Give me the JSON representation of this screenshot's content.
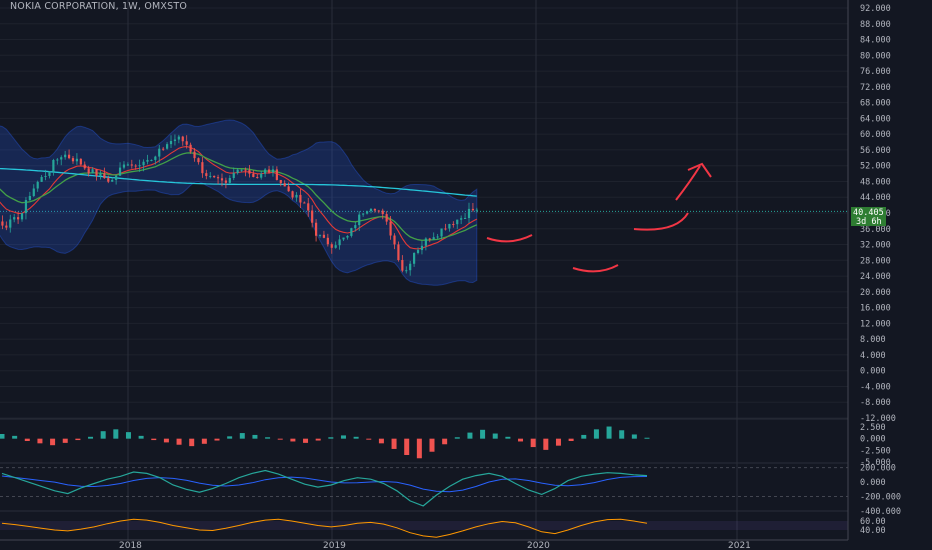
{
  "title": "NOKIA CORPORATION, 1W, OMXSTO",
  "price_tag": {
    "price": "40.405",
    "countdown": "3d 6h",
    "color": "#2e7d32"
  },
  "chart_data": {
    "type": "candlestick",
    "symbol": "NOKIA CORPORATION",
    "interval": "1W",
    "exchange": "OMXSTO",
    "main_pane": {
      "ylim": [
        -12,
        92
      ],
      "y_ticks": [
        "92.000",
        "88.000",
        "84.000",
        "80.000",
        "76.000",
        "72.000",
        "68.000",
        "64.000",
        "60.000",
        "56.000",
        "52.000",
        "48.000",
        "44.000",
        "40.000",
        "36.000",
        "32.000",
        "28.000",
        "24.000",
        "20.000",
        "16.000",
        "12.000",
        "8.000",
        "4.000",
        "0.000",
        "-4.000",
        "-8.000",
        "-12.000"
      ],
      "year_labels": [
        "2018",
        "2019",
        "2020",
        "2021"
      ],
      "last_price": 40.405,
      "long_ma_color": "#26c6da",
      "short_ma_colors": [
        "#e53935",
        "#43a047"
      ],
      "band_color": "#2962ff",
      "price_path": [
        [
          2017.0,
          55
        ],
        [
          2017.04,
          57
        ],
        [
          2017.08,
          54
        ],
        [
          2017.12,
          51
        ],
        [
          2017.16,
          49
        ],
        [
          2017.2,
          48
        ],
        [
          2017.24,
          50
        ],
        [
          2017.26,
          51
        ],
        [
          2017.28,
          42
        ],
        [
          2017.32,
          40
        ],
        [
          2017.36,
          38
        ],
        [
          2017.4,
          37
        ],
        [
          2017.44,
          38
        ],
        [
          2017.48,
          40
        ],
        [
          2017.52,
          45
        ],
        [
          2017.56,
          48
        ],
        [
          2017.6,
          50
        ],
        [
          2017.64,
          53
        ],
        [
          2017.68,
          55
        ],
        [
          2017.72,
          54
        ],
        [
          2017.76,
          53
        ],
        [
          2017.8,
          51
        ],
        [
          2017.84,
          50
        ],
        [
          2017.88,
          49
        ],
        [
          2017.92,
          48
        ],
        [
          2017.96,
          51
        ],
        [
          2018.0,
          53
        ],
        [
          2018.04,
          52
        ],
        [
          2018.08,
          54
        ],
        [
          2018.12,
          53
        ],
        [
          2018.16,
          56
        ],
        [
          2018.2,
          58
        ],
        [
          2018.24,
          59
        ],
        [
          2018.28,
          58
        ],
        [
          2018.32,
          55
        ],
        [
          2018.36,
          51
        ],
        [
          2018.4,
          49
        ],
        [
          2018.44,
          48
        ],
        [
          2018.48,
          47
        ],
        [
          2018.52,
          50
        ],
        [
          2018.56,
          52
        ],
        [
          2018.6,
          50
        ],
        [
          2018.64,
          49
        ],
        [
          2018.68,
          51
        ],
        [
          2018.72,
          50
        ],
        [
          2018.76,
          47
        ],
        [
          2018.8,
          45
        ],
        [
          2018.84,
          43
        ],
        [
          2018.88,
          41
        ],
        [
          2018.92,
          35
        ],
        [
          2018.96,
          33
        ],
        [
          2019.0,
          32
        ],
        [
          2019.04,
          33
        ],
        [
          2019.08,
          34
        ],
        [
          2019.12,
          38
        ],
        [
          2019.16,
          41
        ],
        [
          2019.2,
          42
        ],
        [
          2019.24,
          40
        ],
        [
          2019.28,
          36
        ],
        [
          2019.32,
          30
        ],
        [
          2019.34,
          26
        ],
        [
          2019.36,
          25
        ],
        [
          2019.4,
          30
        ],
        [
          2019.44,
          32
        ],
        [
          2019.48,
          34
        ],
        [
          2019.52,
          35
        ],
        [
          2019.56,
          37
        ],
        [
          2019.6,
          38
        ],
        [
          2019.64,
          39
        ],
        [
          2019.68,
          41
        ],
        [
          2019.71,
          40.405
        ]
      ],
      "annotations": [
        "red-curve-under-2019-low",
        "red-curve-under-2020-low",
        "red-arc-right",
        "red-up-arrow"
      ]
    },
    "indicator_panes": [
      {
        "name": "histogram",
        "y_ticks": [
          "2.500",
          "0.000",
          "-2.500",
          "-5.000"
        ],
        "ylim": [
          -5,
          4
        ],
        "positive_color": "#26a69a",
        "negative_color": "#ef5350",
        "values": [
          1.0,
          0.6,
          -0.5,
          -1.0,
          -1.4,
          -0.9,
          -0.3,
          0.4,
          1.6,
          2.0,
          1.4,
          0.6,
          -0.3,
          -0.8,
          -1.3,
          -1.6,
          -1.1,
          -0.4,
          0.5,
          1.2,
          0.8,
          0.3,
          -0.2,
          -0.6,
          -0.9,
          -0.4,
          0.3,
          0.7,
          0.4,
          -0.2,
          -1.0,
          -2.2,
          -3.5,
          -4.2,
          -2.8,
          -1.2,
          0.3,
          1.3,
          1.9,
          1.1,
          0.4,
          -0.6,
          -1.8,
          -2.4,
          -1.5,
          -0.5,
          0.8,
          2.0,
          2.6,
          1.8,
          0.9,
          0.2
        ]
      },
      {
        "name": "oscillator",
        "y_ticks": [
          "200.000",
          "0.000",
          "-200.000",
          "-400.000"
        ],
        "ylim": [
          -400,
          250
        ],
        "line_color": "#26a69a",
        "signal_color": "#2962ff",
        "values": [
          120,
          60,
          0,
          -60,
          -120,
          -160,
          -80,
          -20,
          40,
          80,
          140,
          120,
          60,
          -40,
          -100,
          -140,
          -90,
          -20,
          60,
          120,
          160,
          110,
          40,
          -30,
          -70,
          -40,
          20,
          60,
          40,
          -20,
          -120,
          -260,
          -330,
          -180,
          -60,
          40,
          90,
          120,
          80,
          -20,
          -110,
          -170,
          -90,
          20,
          80,
          110,
          130,
          120,
          100,
          90
        ]
      },
      {
        "name": "rsi",
        "y_ticks": [
          "60.00",
          "40.00"
        ],
        "ylim": [
          20,
          80
        ],
        "line_color": "#ff9800",
        "band_color": "#7e57c2",
        "values": [
          55,
          52,
          48,
          44,
          40,
          38,
          42,
          47,
          54,
          60,
          64,
          62,
          57,
          50,
          45,
          40,
          39,
          44,
          50,
          57,
          62,
          64,
          60,
          55,
          50,
          47,
          50,
          55,
          57,
          53,
          45,
          34,
          27,
          24,
          30,
          38,
          47,
          54,
          59,
          56,
          47,
          36,
          32,
          40,
          50,
          58,
          63,
          64,
          60,
          55
        ]
      }
    ]
  }
}
